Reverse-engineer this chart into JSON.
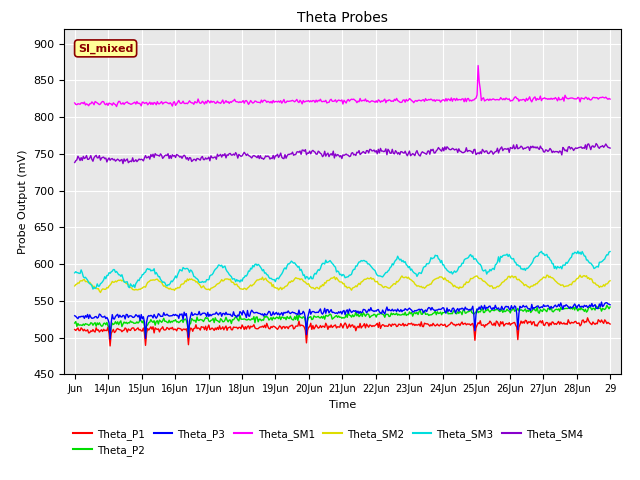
{
  "title": "Theta Probes",
  "xlabel": "Time",
  "ylabel": "Probe Output (mV)",
  "ylim": [
    450,
    920
  ],
  "yticks": [
    450,
    500,
    550,
    600,
    650,
    700,
    750,
    800,
    850,
    900
  ],
  "xtick_labels": [
    "Jun",
    "14Jun",
    "15Jun",
    "16Jun",
    "17Jun",
    "18Jun",
    "19Jun",
    "20Jun",
    "21Jun",
    "22Jun",
    "23Jun",
    "24Jun",
    "25Jun",
    "26Jun",
    "27Jun",
    "28Jun",
    "29"
  ],
  "bg_color": "#e8e8e8",
  "annotation_text": "SI_mixed",
  "annotation_bg": "#ffff99",
  "annotation_border": "#8b0000",
  "colors": {
    "Theta_P1": "#ff0000",
    "Theta_P2": "#00dd00",
    "Theta_P3": "#0000ff",
    "Theta_SM1": "#ff00ff",
    "Theta_SM2": "#dddd00",
    "Theta_SM3": "#00dddd",
    "Theta_SM4": "#8800cc"
  },
  "figsize": [
    6.4,
    4.8
  ],
  "dpi": 100
}
